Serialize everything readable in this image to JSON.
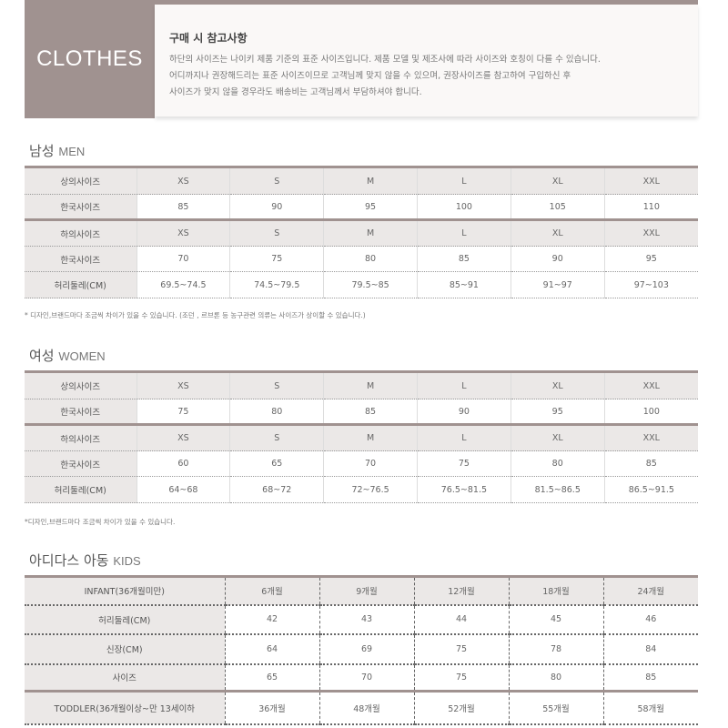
{
  "header": {
    "brand": "CLOTHES",
    "notice_title": "구매 시 참고사항",
    "notice_lines": [
      "하단의 사이즈는 나이키 제품 기준의 표준 사이즈입니다. 제품 모델 및 제조사에 따라 사이즈와 호칭이 다를 수 있습니다.",
      "어디까지나 권장해드리는 표준 사이즈이므로 고객님께 맞지 않을 수 있으며, 권장사이즈를 참고하여 구입하신 후",
      "사이즈가 맞지 않을 경우라도 배송비는 고객님께서 부담하셔야 합니다."
    ]
  },
  "men": {
    "title_ko": "남성",
    "title_en": "MEN",
    "rows": [
      {
        "label": "상의사이즈",
        "values": [
          "XS",
          "S",
          "M",
          "L",
          "XL",
          "XXL"
        ]
      },
      {
        "label": "한국사이즈",
        "values": [
          "85",
          "90",
          "95",
          "100",
          "105",
          "110"
        ]
      },
      {
        "label": "하의사이즈",
        "values": [
          "XS",
          "S",
          "M",
          "L",
          "XL",
          "XXL"
        ]
      },
      {
        "label": "한국사이즈",
        "values": [
          "70",
          "75",
          "80",
          "85",
          "90",
          "95"
        ]
      },
      {
        "label": "허리둘레(CM)",
        "values": [
          "69.5~74.5",
          "74.5~79.5",
          "79.5~85",
          "85~91",
          "91~97",
          "97~103"
        ]
      }
    ],
    "note": "* 디자인,브랜드마다 조금씩 차이가 있을 수 있습니다. (조던 , 르브론 등 농구관련 의류는 사이즈가 상이할 수 있습니다.)"
  },
  "women": {
    "title_ko": "여성",
    "title_en": "WOMEN",
    "rows": [
      {
        "label": "상의사이즈",
        "values": [
          "XS",
          "S",
          "M",
          "L",
          "XL",
          "XXL"
        ]
      },
      {
        "label": "한국사이즈",
        "values": [
          "75",
          "80",
          "85",
          "90",
          "95",
          "100"
        ]
      },
      {
        "label": "하의사이즈",
        "values": [
          "XS",
          "S",
          "M",
          "L",
          "XL",
          "XXL"
        ]
      },
      {
        "label": "한국사이즈",
        "values": [
          "60",
          "65",
          "70",
          "75",
          "80",
          "85"
        ]
      },
      {
        "label": "허리둘레(CM)",
        "values": [
          "64~68",
          "68~72",
          "72~76.5",
          "76.5~81.5",
          "81.5~86.5",
          "86.5~91.5"
        ]
      }
    ],
    "note": "*디자인,브랜드마다 조금씩 차이가 있을 수 있습니다."
  },
  "kids": {
    "title_ko": "아디다스 아동",
    "title_en": "KIDS",
    "rows": [
      {
        "label": "INFANT(36개월미만)",
        "values": [
          "6개월",
          "9개월",
          "12개월",
          "18개월",
          "24개월"
        ]
      },
      {
        "label": "허리둘레(CM)",
        "values": [
          "42",
          "43",
          "44",
          "45",
          "46"
        ]
      },
      {
        "label": "신장(CM)",
        "values": [
          "64",
          "69",
          "75",
          "78",
          "84"
        ]
      },
      {
        "label": "사이즈",
        "values": [
          "65",
          "70",
          "75",
          "80",
          "85"
        ]
      },
      {
        "label": "TODDLER(36개월이상~만 13세이하",
        "values": [
          "36개월",
          "48개월",
          "52개월",
          "55개월",
          "58개월"
        ]
      }
    ]
  },
  "colors": {
    "accent": "#a09290",
    "header_bg": "#ebe8e7"
  }
}
